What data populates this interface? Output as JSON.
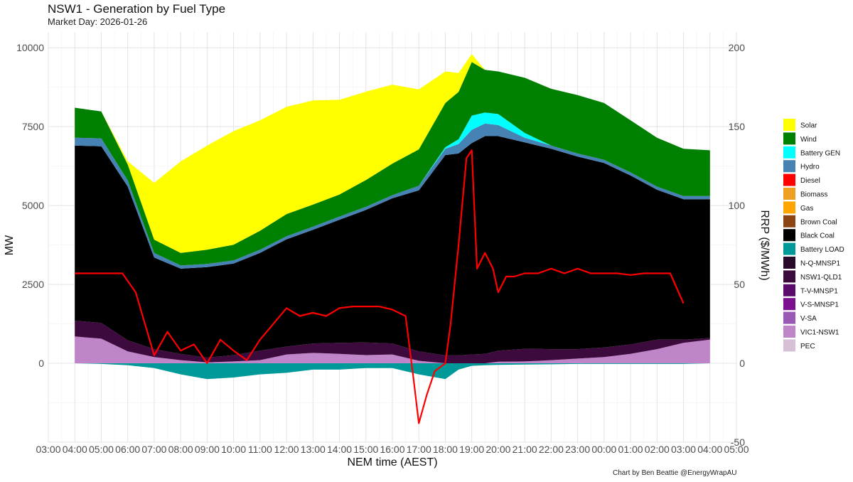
{
  "title": "NSW1 - Generation by Fuel Type",
  "subtitle": "Market Day: 2026-01-26",
  "caption": "Chart by Ben Beattie @EnergyWrapAU",
  "chart_data": {
    "type": "area",
    "xlabel": "NEM time (AEST)",
    "ylabel": "MW",
    "y2label": "RRP ($/MWh)",
    "x_ticks": [
      "03:00",
      "04:00",
      "05:00",
      "06:00",
      "07:00",
      "08:00",
      "09:00",
      "10:00",
      "11:00",
      "12:00",
      "13:00",
      "14:00",
      "15:00",
      "16:00",
      "17:00",
      "18:00",
      "19:00",
      "20:00",
      "21:00",
      "22:00",
      "23:00",
      "00:00",
      "01:00",
      "02:00",
      "03:00",
      "04:00",
      "05:00"
    ],
    "x_hours": [
      4,
      5,
      6,
      7,
      8,
      9,
      10,
      11,
      12,
      13,
      14,
      15,
      16,
      17,
      18,
      18.5,
      19,
      19.5,
      20,
      21,
      22,
      23,
      24,
      25,
      26,
      27,
      28
    ],
    "xlim": [
      3,
      29
    ],
    "ylim": [
      -2500,
      10500
    ],
    "y_ticks": [
      0,
      2500,
      5000,
      7500,
      10000
    ],
    "y2lim": [
      -50,
      210
    ],
    "y2_ticks": [
      -50,
      0,
      50,
      100,
      150,
      200
    ],
    "legend_position": "right",
    "stack_positive": [
      {
        "name": "VIC1-NSW1",
        "color": "#c084c8",
        "values": [
          850,
          780,
          380,
          200,
          100,
          30,
          60,
          100,
          280,
          330,
          300,
          260,
          280,
          80,
          0,
          0,
          0,
          0,
          50,
          60,
          100,
          150,
          200,
          300,
          450,
          650,
          750
        ]
      },
      {
        "name": "V-SA",
        "color": "#9b59b6",
        "values": [
          0,
          0,
          0,
          0,
          0,
          0,
          0,
          0,
          0,
          0,
          0,
          0,
          0,
          0,
          0,
          0,
          0,
          0,
          0,
          0,
          0,
          0,
          0,
          0,
          0,
          0,
          0
        ]
      },
      {
        "name": "V-S-MNSP1",
        "color": "#7b0f8f",
        "values": [
          0,
          0,
          0,
          0,
          0,
          0,
          0,
          0,
          0,
          0,
          0,
          0,
          0,
          0,
          0,
          0,
          0,
          0,
          0,
          0,
          0,
          0,
          0,
          0,
          0,
          0,
          0
        ]
      },
      {
        "name": "T-V-MNSP1",
        "color": "#5a0a6a",
        "values": [
          0,
          0,
          0,
          0,
          0,
          0,
          0,
          0,
          0,
          0,
          0,
          0,
          0,
          0,
          0,
          0,
          0,
          0,
          0,
          0,
          0,
          0,
          0,
          0,
          0,
          0,
          0
        ]
      },
      {
        "name": "NSW1-QLD1",
        "color": "#3d0a3d",
        "values": [
          500,
          500,
          350,
          250,
          200,
          150,
          200,
          300,
          250,
          300,
          350,
          400,
          350,
          300,
          250,
          250,
          280,
          300,
          350,
          400,
          350,
          300,
          300,
          300,
          300,
          100,
          50
        ]
      },
      {
        "name": "N-Q-MNSP1",
        "color": "#2a0a2a",
        "values": [
          0,
          0,
          0,
          0,
          0,
          0,
          0,
          0,
          0,
          0,
          0,
          0,
          0,
          0,
          0,
          0,
          0,
          0,
          0,
          0,
          0,
          0,
          0,
          0,
          0,
          0,
          0
        ]
      },
      {
        "name": "Black Coal",
        "color": "#000000",
        "values": [
          5550,
          5600,
          4870,
          2900,
          2700,
          2870,
          2900,
          3100,
          3400,
          3600,
          3900,
          4200,
          4600,
          5100,
          6350,
          6400,
          6700,
          6900,
          6800,
          6540,
          6350,
          6100,
          5850,
          5350,
          4750,
          4450,
          4400
        ]
      },
      {
        "name": "Brown Coal",
        "color": "#8b4513",
        "values": [
          0,
          0,
          0,
          0,
          0,
          0,
          0,
          0,
          0,
          0,
          0,
          0,
          0,
          0,
          0,
          0,
          0,
          0,
          0,
          0,
          0,
          0,
          0,
          0,
          0,
          0,
          0
        ]
      },
      {
        "name": "Gas",
        "color": "#ffa500",
        "values": [
          0,
          0,
          0,
          0,
          0,
          0,
          0,
          0,
          0,
          0,
          0,
          0,
          0,
          0,
          0,
          0,
          0,
          0,
          0,
          0,
          0,
          0,
          0,
          0,
          0,
          0,
          0
        ]
      },
      {
        "name": "Biomass",
        "color": "#f0a020",
        "values": [
          0,
          0,
          0,
          0,
          0,
          0,
          0,
          0,
          0,
          0,
          0,
          0,
          0,
          0,
          0,
          0,
          0,
          0,
          0,
          0,
          0,
          0,
          0,
          0,
          0,
          0,
          0
        ]
      },
      {
        "name": "Diesel",
        "color": "#ff0000",
        "values": [
          0,
          0,
          0,
          0,
          0,
          0,
          0,
          0,
          0,
          0,
          0,
          0,
          0,
          0,
          0,
          0,
          0,
          0,
          0,
          0,
          0,
          0,
          0,
          0,
          0,
          0,
          0
        ]
      },
      {
        "name": "Hydro",
        "color": "#4682b4",
        "values": [
          250,
          250,
          200,
          150,
          100,
          100,
          100,
          100,
          100,
          100,
          100,
          100,
          100,
          150,
          200,
          300,
          420,
          400,
          350,
          150,
          100,
          100,
          100,
          100,
          100,
          100,
          100
        ]
      },
      {
        "name": "Battery GEN",
        "color": "#00ffff",
        "values": [
          0,
          0,
          0,
          0,
          0,
          0,
          0,
          0,
          0,
          0,
          0,
          0,
          0,
          0,
          50,
          150,
          450,
          350,
          350,
          150,
          0,
          0,
          0,
          0,
          0,
          0,
          0
        ]
      },
      {
        "name": "Wind",
        "color": "#008000",
        "values": [
          950,
          850,
          500,
          420,
          400,
          450,
          500,
          600,
          700,
          700,
          700,
          850,
          1000,
          1150,
          1400,
          1500,
          1700,
          1350,
          1350,
          1750,
          1800,
          1850,
          1800,
          1650,
          1550,
          1500,
          1450
        ]
      },
      {
        "name": "Solar",
        "color": "#ffff00",
        "values": [
          0,
          0,
          100,
          1800,
          2900,
          3300,
          3600,
          3500,
          3400,
          3300,
          3000,
          2800,
          2500,
          1900,
          1000,
          600,
          250,
          0,
          0,
          0,
          0,
          0,
          0,
          0,
          0,
          0,
          0
        ]
      }
    ],
    "stack_negative": [
      {
        "name": "Battery LOAD",
        "color": "#009999",
        "values": [
          0,
          -20,
          -60,
          -150,
          -350,
          -500,
          -450,
          -350,
          -300,
          -200,
          -200,
          -150,
          -150,
          -350,
          -500,
          -200,
          -80,
          -60,
          -50,
          -40,
          -30,
          -20,
          -20,
          -20,
          -20,
          -20,
          0
        ]
      },
      {
        "name": "PEC",
        "color": "#d8bfd8",
        "values": [
          0,
          0,
          0,
          0,
          0,
          0,
          0,
          0,
          0,
          0,
          0,
          0,
          0,
          0,
          0,
          0,
          0,
          0,
          0,
          0,
          0,
          0,
          0,
          0,
          0,
          0,
          0
        ]
      }
    ],
    "line_series": {
      "name": "RRP",
      "color": "#ff0000",
      "axis": "right",
      "x": [
        4,
        5,
        5.8,
        6.3,
        7,
        7.5,
        8,
        8.5,
        9,
        9.5,
        10,
        10.5,
        11,
        11.5,
        12,
        12.5,
        13,
        13.5,
        14,
        14.5,
        15,
        15.5,
        16,
        16.5,
        16.8,
        17,
        17.3,
        17.6,
        18,
        18.2,
        18.5,
        18.8,
        19,
        19.2,
        19.5,
        19.8,
        20,
        20.3,
        20.6,
        21,
        21.5,
        22,
        22.5,
        23,
        23.5,
        24,
        24.5,
        25,
        25.5,
        26,
        26.5,
        27
      ],
      "values": [
        57,
        57,
        57,
        45,
        5,
        20,
        8,
        12,
        0,
        15,
        8,
        2,
        15,
        25,
        35,
        30,
        32,
        30,
        35,
        36,
        36,
        36,
        34,
        30,
        -10,
        -38,
        -20,
        -5,
        0,
        25,
        75,
        130,
        135,
        60,
        70,
        60,
        45,
        55,
        55,
        57,
        57,
        60,
        57,
        60,
        57,
        57,
        57,
        56,
        57,
        57,
        57,
        38
      ]
    },
    "legend": [
      {
        "name": "Solar",
        "color": "#ffff00"
      },
      {
        "name": "Wind",
        "color": "#008000"
      },
      {
        "name": "Battery GEN",
        "color": "#00ffff"
      },
      {
        "name": "Hydro",
        "color": "#4682b4"
      },
      {
        "name": "Diesel",
        "color": "#ff0000"
      },
      {
        "name": "Biomass",
        "color": "#f0a020"
      },
      {
        "name": "Gas",
        "color": "#ffa500"
      },
      {
        "name": "Brown Coal",
        "color": "#8b4513"
      },
      {
        "name": "Black Coal",
        "color": "#000000"
      },
      {
        "name": "Battery LOAD",
        "color": "#009999"
      },
      {
        "name": "N-Q-MNSP1",
        "color": "#2a0a2a"
      },
      {
        "name": "NSW1-QLD1",
        "color": "#3d0a3d"
      },
      {
        "name": "T-V-MNSP1",
        "color": "#5a0a6a"
      },
      {
        "name": "V-S-MNSP1",
        "color": "#7b0f8f"
      },
      {
        "name": "V-SA",
        "color": "#9b59b6"
      },
      {
        "name": "VIC1-NSW1",
        "color": "#c084c8"
      },
      {
        "name": "PEC",
        "color": "#d8bfd8"
      }
    ]
  }
}
